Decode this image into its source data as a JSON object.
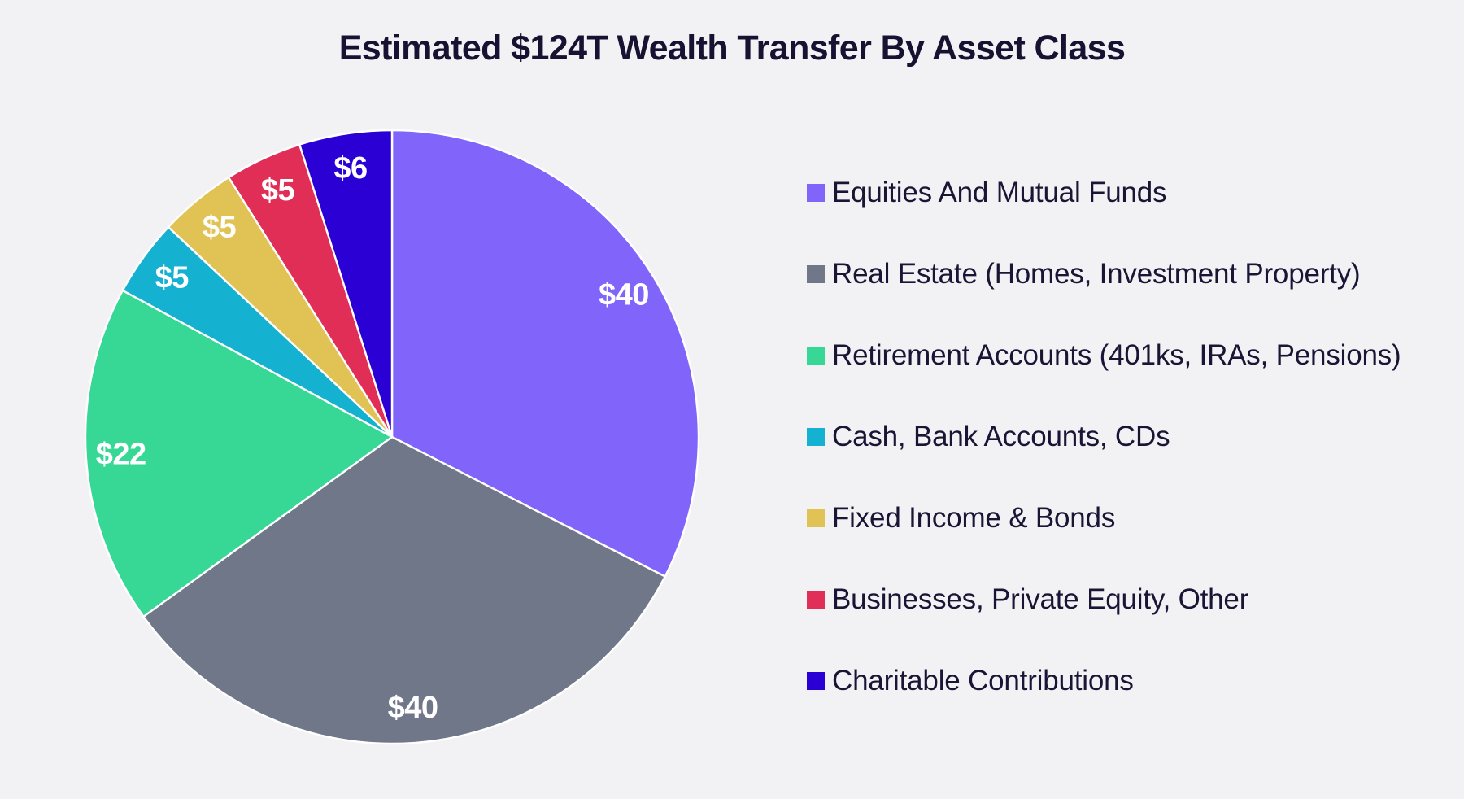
{
  "chart_data": {
    "type": "pie",
    "title": "Estimated $124T Wealth Transfer By Asset Class",
    "unit_prefix": "$",
    "start_angle_deg": 0,
    "direction": "clockwise",
    "legend_position": "right",
    "background_color": "#f2f2f5",
    "separator_color": "#ffffff",
    "value_label_color": "#ffffff",
    "text_color": "#171231",
    "series": [
      {
        "label": "Equities And Mutual Funds",
        "value": 40,
        "value_label": "$40",
        "color": "#8164f9"
      },
      {
        "label": "Real Estate (Homes, Investment Property)",
        "value": 40,
        "value_label": "$40",
        "color": "#707789"
      },
      {
        "label": "Retirement Accounts (401ks, IRAs, Pensions)",
        "value": 22,
        "value_label": "$22",
        "color": "#37d795"
      },
      {
        "label": "Cash, Bank Accounts, CDs",
        "value": 5,
        "value_label": "$5",
        "color": "#14b1d0"
      },
      {
        "label": "Fixed Income & Bonds",
        "value": 5,
        "value_label": "$5",
        "color": "#e1c355"
      },
      {
        "label": "Businesses, Private Equity, Other",
        "value": 5,
        "value_label": "$5",
        "color": "#e12e56"
      },
      {
        "label": "Charitable Contributions",
        "value": 6,
        "value_label": "$6",
        "color": "#2b00d5"
      }
    ]
  }
}
